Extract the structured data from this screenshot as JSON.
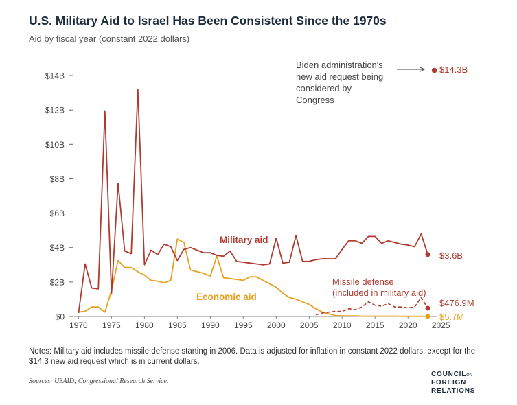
{
  "title": "U.S. Military Aid to Israel Has Been Consistent Since the 1970s",
  "subtitle": "Aid by fiscal year (constant 2022 dollars)",
  "notes": "Notes: Military aid includes missile defense starting in 2006. Data is adjusted for inflation in constant 2022 dollars, except for the $14.3 new aid request which is in current dollars.",
  "sources": "Sources: USAID; Congressional Research Service.",
  "logo": {
    "line1": "COUNCIL",
    "line1_suffix": "on",
    "line2": "FOREIGN",
    "line3": "RELATIONS"
  },
  "colors": {
    "military": "#b03a2e",
    "economic": "#e8a020",
    "text_dark": "#1d2b3a"
  },
  "chart_data": {
    "type": "line",
    "x_ticks": [
      1970,
      1975,
      1980,
      1985,
      1990,
      1995,
      2000,
      2005,
      2010,
      2015,
      2020,
      2025
    ],
    "y_ticks": [
      0,
      2,
      4,
      6,
      8,
      10,
      12,
      14
    ],
    "y_tick_labels": [
      "$0",
      "$2B",
      "$4B",
      "$6B",
      "$8B",
      "$10B",
      "$12B",
      "$14B"
    ],
    "xlim": [
      1968.5,
      2025.5
    ],
    "ylim": [
      0,
      14.6
    ],
    "series": [
      {
        "name": "Military aid",
        "color": "#b03a2e",
        "style": "solid",
        "x": [
          1970,
          1971,
          1972,
          1973,
          1974,
          1975,
          1976,
          1977,
          1978,
          1979,
          1980,
          1981,
          1982,
          1983,
          1984,
          1985,
          1986,
          1987,
          1988,
          1989,
          1990,
          1991,
          1992,
          1993,
          1994,
          1995,
          1996,
          1997,
          1998,
          1999,
          2000,
          2001,
          2002,
          2003,
          2004,
          2005,
          2006,
          2007,
          2008,
          2009,
          2010,
          2011,
          2012,
          2013,
          2014,
          2015,
          2016,
          2017,
          2018,
          2019,
          2020,
          2021,
          2022,
          2023
        ],
        "y": [
          0.2,
          3.05,
          1.65,
          1.6,
          11.95,
          1.3,
          7.75,
          3.8,
          3.65,
          13.2,
          3.0,
          3.85,
          3.6,
          4.2,
          4.05,
          3.25,
          3.9,
          4.0,
          3.85,
          3.7,
          3.7,
          3.55,
          3.5,
          3.8,
          3.2,
          3.15,
          3.1,
          3.05,
          3.0,
          3.05,
          4.55,
          3.1,
          3.15,
          4.7,
          3.2,
          3.2,
          3.3,
          3.35,
          3.35,
          3.35,
          3.9,
          4.4,
          4.4,
          4.25,
          4.65,
          4.65,
          4.25,
          4.4,
          4.3,
          4.2,
          4.15,
          4.05,
          4.8,
          3.6
        ]
      },
      {
        "name": "Economic aid",
        "color": "#e8a020",
        "style": "solid",
        "x": [
          1970,
          1971,
          1972,
          1973,
          1974,
          1975,
          1976,
          1977,
          1978,
          1979,
          1980,
          1981,
          1982,
          1983,
          1984,
          1985,
          1986,
          1987,
          1988,
          1989,
          1990,
          1991,
          1992,
          1993,
          1994,
          1995,
          1996,
          1997,
          1998,
          1999,
          2000,
          2001,
          2002,
          2003,
          2004,
          2005,
          2006,
          2007,
          2008,
          2009,
          2010,
          2011,
          2012,
          2013,
          2014,
          2015,
          2016,
          2017,
          2018,
          2019,
          2020,
          2021,
          2022,
          2023
        ],
        "y": [
          0.25,
          0.3,
          0.55,
          0.55,
          0.25,
          1.5,
          3.25,
          2.85,
          2.85,
          2.6,
          2.4,
          2.1,
          2.05,
          1.95,
          2.1,
          4.5,
          4.3,
          2.7,
          2.6,
          2.5,
          2.35,
          3.5,
          2.25,
          2.2,
          2.15,
          2.1,
          2.3,
          2.3,
          2.1,
          1.9,
          1.7,
          1.35,
          1.1,
          1.0,
          0.85,
          0.7,
          0.45,
          0.25,
          0.15,
          0.05,
          0.03,
          0.03,
          0.03,
          0.02,
          0.02,
          0.02,
          0.02,
          0.02,
          0.02,
          0.01,
          0.01,
          0.01,
          0.01,
          0.0057
        ]
      },
      {
        "name": "Missile defense (included in military aid)",
        "color": "#b03a2e",
        "style": "dashed",
        "x": [
          2006,
          2007,
          2008,
          2009,
          2010,
          2011,
          2012,
          2013,
          2014,
          2015,
          2016,
          2017,
          2018,
          2019,
          2020,
          2021,
          2022,
          2023
        ],
        "y": [
          0.1,
          0.2,
          0.25,
          0.3,
          0.3,
          0.45,
          0.4,
          0.55,
          0.85,
          0.65,
          0.6,
          0.75,
          0.55,
          0.55,
          0.5,
          0.55,
          1.1,
          0.477
        ]
      }
    ],
    "request_point": {
      "x": 2024,
      "y": 14.3,
      "label": "$14.3B"
    },
    "annotations": {
      "military_label": "Military aid",
      "economic_label": "Economic aid",
      "missile_label_line1": "Missile defense",
      "missile_label_line2": "(included in military aid)",
      "request_note": [
        "Biden administration's",
        "new aid request being",
        "considered by",
        "Congress"
      ],
      "end_military": "$3.6B",
      "end_missile": "$476.9M",
      "end_economic": "$5.7M"
    }
  }
}
